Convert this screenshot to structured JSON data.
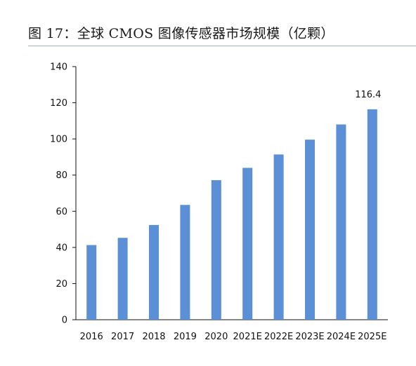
{
  "figure": {
    "title": "图 17：全球 CMOS 图像传感器市场规模（亿颗）"
  },
  "colors": {
    "bar": "#5b8fd6",
    "axis": "#111111",
    "title_rule": "#9fb3cc"
  },
  "chart_data": {
    "type": "bar",
    "title": "",
    "xlabel": "",
    "ylabel": "",
    "categories": [
      "2016",
      "2017",
      "2018",
      "2019",
      "2020",
      "2021E",
      "2022E",
      "2023E",
      "2024E",
      "2025E"
    ],
    "values": [
      41.3,
      45.3,
      52.4,
      63.5,
      77.2,
      84.0,
      91.4,
      99.6,
      108.0,
      116.4
    ],
    "ylim": [
      0,
      140
    ],
    "yticks": [
      0,
      20,
      40,
      60,
      80,
      100,
      120,
      140
    ],
    "grid": false,
    "legend": "none",
    "data_labels": [
      {
        "index": 9,
        "text": "116.4"
      }
    ]
  }
}
